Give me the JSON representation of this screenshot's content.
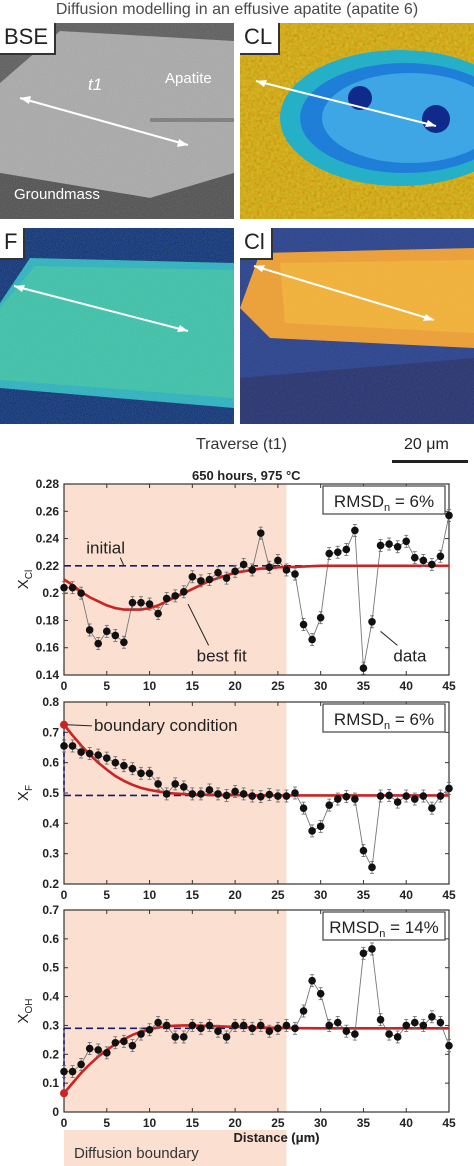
{
  "figure_title": "Diffusion modelling in an effusive apatite (apatite 6)",
  "images": [
    {
      "label": "BSE",
      "annotations": {
        "traverse": "t1",
        "mineral": "Apatite",
        "matrix": "Groundmass"
      }
    },
    {
      "label": "CL"
    },
    {
      "label": "F"
    },
    {
      "label": "Cl"
    }
  ],
  "traverse_label": "Traverse (t1)",
  "scale_bar_label": "20 μm",
  "subtitle": "650 hours, 975 °C",
  "xlabel": "Distance (μm)",
  "shaded_region_label": "Diffusion boundary",
  "colors": {
    "data": "#111111",
    "fit": "#cc2222",
    "initial": "#1a1a6e",
    "shade": "#fbe0d2",
    "frame": "#333333"
  },
  "chart_data": [
    {
      "type": "scatter",
      "ylabel": "X",
      "ylabel_sub": "Cl",
      "rmsd": {
        "text": "RMSD",
        "sub": "n",
        "value": " = 6%"
      },
      "ylim": [
        0.14,
        0.28
      ],
      "yticks": [
        0.14,
        0.16,
        0.18,
        0.2,
        0.22,
        0.24,
        0.26,
        0.28
      ],
      "ytick_labels": [
        "0.14",
        "0.16",
        "0.18",
        "0.2",
        "0.22",
        "0.24",
        "0.26",
        "0.28"
      ],
      "xlim": [
        0,
        45
      ],
      "xticks": [
        0,
        5,
        10,
        15,
        20,
        25,
        30,
        35,
        40,
        45
      ],
      "shade_range": [
        0,
        26
      ],
      "initial_value": 0.22,
      "annotations": [
        {
          "text": "initial",
          "x": 2.6,
          "y": 0.229,
          "arrow_to": [
            7,
            0.22
          ]
        },
        {
          "text": "best fit",
          "x": 15.5,
          "y": 0.15,
          "arrow_to": [
            14.5,
            0.192
          ]
        },
        {
          "text": "data",
          "x": 38.5,
          "y": 0.15,
          "arrow_to": [
            37,
            0.172
          ]
        }
      ],
      "fit": {
        "x": [
          0,
          1,
          2,
          3,
          4,
          5,
          6,
          7,
          8,
          9,
          10,
          11,
          12,
          13,
          14,
          15,
          16,
          17,
          18,
          19,
          20,
          21,
          22,
          23,
          24,
          25,
          26,
          30,
          35,
          40,
          45
        ],
        "y": [
          0.21,
          0.206,
          0.201,
          0.197,
          0.194,
          0.191,
          0.189,
          0.188,
          0.188,
          0.188,
          0.189,
          0.191,
          0.194,
          0.197,
          0.2,
          0.203,
          0.206,
          0.209,
          0.211,
          0.213,
          0.215,
          0.216,
          0.217,
          0.218,
          0.218,
          0.219,
          0.219,
          0.22,
          0.22,
          0.22,
          0.22
        ]
      },
      "data": {
        "x": [
          0,
          1,
          2,
          3,
          4,
          5,
          6,
          7,
          8,
          9,
          10,
          11,
          12,
          13,
          14,
          15,
          16,
          17,
          18,
          19,
          20,
          21,
          22,
          23,
          24,
          25,
          26,
          27,
          28,
          29,
          30,
          31,
          32,
          33,
          34,
          35,
          36,
          37,
          38,
          39,
          40,
          41,
          42,
          43,
          44,
          45
        ],
        "y": [
          0.204,
          0.204,
          0.2,
          0.173,
          0.163,
          0.172,
          0.169,
          0.164,
          0.193,
          0.193,
          0.192,
          0.185,
          0.196,
          0.198,
          0.201,
          0.212,
          0.209,
          0.21,
          0.215,
          0.211,
          0.216,
          0.221,
          0.217,
          0.244,
          0.219,
          0.224,
          0.217,
          0.214,
          0.177,
          0.166,
          0.182,
          0.229,
          0.23,
          0.232,
          0.246,
          0.145,
          0.179,
          0.235,
          0.236,
          0.234,
          0.238,
          0.226,
          0.224,
          0.221,
          0.227,
          0.257
        ]
      }
    },
    {
      "type": "scatter",
      "ylabel": "X",
      "ylabel_sub": "F",
      "rmsd": {
        "text": "RMSD",
        "sub": "n",
        "value": " = 6%"
      },
      "ylim": [
        0.2,
        0.8
      ],
      "yticks": [
        0.2,
        0.3,
        0.4,
        0.5,
        0.6,
        0.7,
        0.8
      ],
      "ytick_labels": [
        "0.2",
        "0.3",
        "0.4",
        "0.5",
        "0.6",
        "0.7",
        "0.8"
      ],
      "xlim": [
        0,
        45
      ],
      "xticks": [
        0,
        5,
        10,
        15,
        20,
        25,
        30,
        35,
        40,
        45
      ],
      "shade_range": [
        0,
        26
      ],
      "initial_value": 0.492,
      "boundary_point": [
        0,
        0.725
      ],
      "annotations": [
        {
          "text": "boundary condition",
          "x": 3.5,
          "y": 0.705,
          "arrow_to": [
            0.4,
            0.725
          ]
        }
      ],
      "fit": {
        "x": [
          0,
          1,
          2,
          3,
          4,
          5,
          6,
          7,
          8,
          9,
          10,
          11,
          12,
          13,
          14,
          15,
          17,
          19,
          21,
          23,
          25,
          30,
          35,
          40,
          45
        ],
        "y": [
          0.725,
          0.69,
          0.657,
          0.627,
          0.6,
          0.577,
          0.556,
          0.54,
          0.527,
          0.517,
          0.51,
          0.505,
          0.501,
          0.498,
          0.496,
          0.495,
          0.494,
          0.493,
          0.493,
          0.492,
          0.492,
          0.492,
          0.492,
          0.492,
          0.492
        ]
      },
      "data": {
        "x": [
          0,
          1,
          2,
          3,
          4,
          5,
          6,
          7,
          8,
          9,
          10,
          11,
          12,
          13,
          14,
          15,
          16,
          17,
          18,
          19,
          20,
          21,
          22,
          23,
          24,
          25,
          26,
          27,
          28,
          29,
          30,
          31,
          32,
          33,
          34,
          35,
          36,
          37,
          38,
          39,
          40,
          41,
          42,
          43,
          44,
          45
        ],
        "y": [
          0.655,
          0.655,
          0.635,
          0.63,
          0.625,
          0.615,
          0.6,
          0.59,
          0.58,
          0.565,
          0.565,
          0.53,
          0.497,
          0.53,
          0.52,
          0.497,
          0.497,
          0.51,
          0.497,
          0.492,
          0.505,
          0.497,
          0.49,
          0.488,
          0.495,
          0.49,
          0.49,
          0.5,
          0.45,
          0.375,
          0.39,
          0.46,
          0.48,
          0.488,
          0.48,
          0.31,
          0.255,
          0.49,
          0.492,
          0.47,
          0.49,
          0.48,
          0.49,
          0.45,
          0.49,
          0.515
        ]
      }
    },
    {
      "type": "scatter",
      "ylabel": "X",
      "ylabel_sub": "OH",
      "rmsd": {
        "text": "RMSD",
        "sub": "n",
        "value": " = 14%"
      },
      "ylim": [
        0,
        0.7
      ],
      "yticks": [
        0,
        0.1,
        0.2,
        0.3,
        0.4,
        0.5,
        0.6,
        0.7
      ],
      "ytick_labels": [
        "0",
        "0.1",
        "0.2",
        "0.3",
        "0.4",
        "0.5",
        "0.6",
        "0.7"
      ],
      "xlim": [
        0,
        45
      ],
      "xticks": [
        0,
        5,
        10,
        15,
        20,
        25,
        30,
        35,
        40,
        45
      ],
      "xtick_labels": [
        "0",
        "5",
        "10",
        "15",
        "20",
        "25",
        "30",
        "35",
        "40",
        "45"
      ],
      "shade_range": [
        0,
        26
      ],
      "initial_value": 0.29,
      "boundary_point": [
        0,
        0.065
      ],
      "annotations": [],
      "fit": {
        "x": [
          0,
          1,
          2,
          3,
          4,
          5,
          6,
          7,
          8,
          9,
          10,
          11,
          12,
          13,
          14,
          15,
          16,
          18,
          20,
          22,
          24,
          26,
          30,
          35,
          40,
          45
        ],
        "y": [
          0.065,
          0.1,
          0.135,
          0.165,
          0.192,
          0.215,
          0.235,
          0.252,
          0.267,
          0.278,
          0.287,
          0.293,
          0.297,
          0.299,
          0.3,
          0.3,
          0.299,
          0.297,
          0.295,
          0.293,
          0.292,
          0.291,
          0.29,
          0.29,
          0.29,
          0.29
        ]
      },
      "data": {
        "x": [
          0,
          1,
          2,
          3,
          4,
          5,
          6,
          7,
          8,
          9,
          10,
          11,
          12,
          13,
          14,
          15,
          16,
          17,
          18,
          19,
          20,
          21,
          22,
          23,
          24,
          25,
          26,
          27,
          28,
          29,
          30,
          31,
          32,
          33,
          34,
          35,
          36,
          37,
          38,
          39,
          40,
          41,
          42,
          43,
          44,
          45
        ],
        "y": [
          0.14,
          0.14,
          0.165,
          0.22,
          0.215,
          0.205,
          0.24,
          0.245,
          0.23,
          0.27,
          0.285,
          0.31,
          0.3,
          0.26,
          0.26,
          0.3,
          0.29,
          0.3,
          0.28,
          0.26,
          0.3,
          0.3,
          0.29,
          0.3,
          0.28,
          0.29,
          0.3,
          0.29,
          0.35,
          0.455,
          0.41,
          0.3,
          0.31,
          0.28,
          0.27,
          0.55,
          0.565,
          0.32,
          0.27,
          0.26,
          0.3,
          0.31,
          0.3,
          0.33,
          0.31,
          0.23
        ]
      }
    }
  ]
}
